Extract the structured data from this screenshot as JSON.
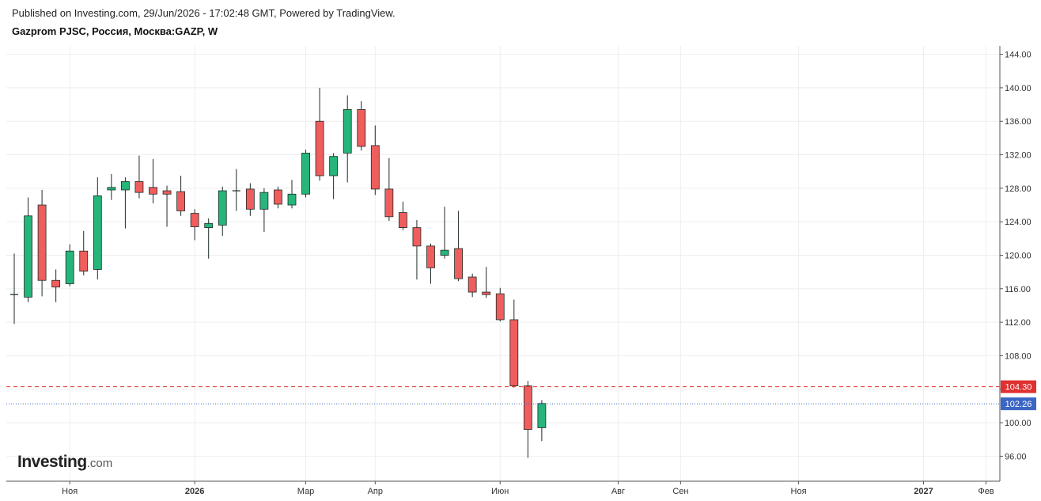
{
  "header": {
    "published": "Published on Investing.com, 29/Jun/2026 - 17:02:48 GMT, Powered by TradingView.",
    "symbol": "Gazprom PJSC, Россия, Москва:GAZP, W"
  },
  "logo": {
    "brand": "Investing",
    "domain": ".com"
  },
  "colors": {
    "up": "#26b57a",
    "down": "#f05d5d",
    "wick": "#1d2a26",
    "grid": "#eeeeee",
    "axis": "#555555",
    "alert_line": "#e03030",
    "price_line": "#3b66c4"
  },
  "chart_data": {
    "type": "candlestick",
    "timeframe": "W",
    "ylim": [
      93,
      145
    ],
    "y_ticks": [
      96,
      100,
      104,
      108,
      112,
      116,
      120,
      124,
      128,
      132,
      136,
      140,
      144
    ],
    "y_tick_labels": [
      "96.00",
      "100.00",
      "104.00",
      "108.00",
      "112.00",
      "116.00",
      "120.00",
      "124.00",
      "128.00",
      "132.00",
      "136.00",
      "140.00",
      "144.00"
    ],
    "x_labels": [
      {
        "label": "Ноя",
        "week": 4,
        "bold": false
      },
      {
        "label": "2026",
        "week": 13,
        "bold": true
      },
      {
        "label": "Мар",
        "week": 21,
        "bold": false
      },
      {
        "label": "Апр",
        "week": 26,
        "bold": false
      },
      {
        "label": "Июн",
        "week": 35,
        "bold": false
      },
      {
        "label": "Авг",
        "week": 43.5,
        "bold": false
      },
      {
        "label": "Сен",
        "week": 48,
        "bold": false
      },
      {
        "label": "Ноя",
        "week": 56.5,
        "bold": false
      },
      {
        "label": "2027",
        "week": 65.5,
        "bold": true
      },
      {
        "label": "Фев",
        "week": 70,
        "bold": false
      }
    ],
    "candles": [
      {
        "o": 115.3,
        "h": 120.2,
        "l": 111.8,
        "c": 115.3
      },
      {
        "o": 115.0,
        "h": 126.9,
        "l": 114.4,
        "c": 124.7
      },
      {
        "o": 126.0,
        "h": 127.8,
        "l": 115.1,
        "c": 117.0
      },
      {
        "o": 117.0,
        "h": 118.3,
        "l": 114.4,
        "c": 116.2
      },
      {
        "o": 116.6,
        "h": 121.3,
        "l": 116.3,
        "c": 120.5
      },
      {
        "o": 120.5,
        "h": 122.9,
        "l": 117.6,
        "c": 118.1
      },
      {
        "o": 118.3,
        "h": 129.3,
        "l": 117.1,
        "c": 127.1
      },
      {
        "o": 127.8,
        "h": 129.7,
        "l": 126.6,
        "c": 128.1
      },
      {
        "o": 127.8,
        "h": 129.3,
        "l": 123.2,
        "c": 128.8
      },
      {
        "o": 128.8,
        "h": 131.9,
        "l": 126.8,
        "c": 127.5
      },
      {
        "o": 128.1,
        "h": 131.5,
        "l": 126.2,
        "c": 127.3
      },
      {
        "o": 127.7,
        "h": 128.3,
        "l": 123.4,
        "c": 127.3
      },
      {
        "o": 127.6,
        "h": 129.5,
        "l": 124.7,
        "c": 125.3
      },
      {
        "o": 125.0,
        "h": 125.5,
        "l": 121.8,
        "c": 123.4
      },
      {
        "o": 123.3,
        "h": 124.4,
        "l": 119.6,
        "c": 123.8
      },
      {
        "o": 123.6,
        "h": 128.2,
        "l": 122.3,
        "c": 127.7
      },
      {
        "o": 127.6,
        "h": 130.3,
        "l": 125.3,
        "c": 127.7
      },
      {
        "o": 127.9,
        "h": 128.6,
        "l": 124.7,
        "c": 125.5
      },
      {
        "o": 125.5,
        "h": 128.0,
        "l": 122.8,
        "c": 127.5
      },
      {
        "o": 127.8,
        "h": 128.2,
        "l": 125.6,
        "c": 126.1
      },
      {
        "o": 126.0,
        "h": 129.0,
        "l": 125.6,
        "c": 127.3
      },
      {
        "o": 127.3,
        "h": 132.6,
        "l": 126.9,
        "c": 132.2
      },
      {
        "o": 136.0,
        "h": 140.0,
        "l": 128.9,
        "c": 129.5
      },
      {
        "o": 129.5,
        "h": 132.2,
        "l": 126.7,
        "c": 131.8
      },
      {
        "o": 132.2,
        "h": 139.1,
        "l": 128.7,
        "c": 137.4
      },
      {
        "o": 137.4,
        "h": 138.4,
        "l": 132.5,
        "c": 133.0
      },
      {
        "o": 133.1,
        "h": 135.5,
        "l": 127.2,
        "c": 127.9
      },
      {
        "o": 127.9,
        "h": 131.6,
        "l": 124.1,
        "c": 124.6
      },
      {
        "o": 125.1,
        "h": 126.4,
        "l": 123.0,
        "c": 123.3
      },
      {
        "o": 123.3,
        "h": 124.2,
        "l": 117.1,
        "c": 121.1
      },
      {
        "o": 121.1,
        "h": 121.4,
        "l": 116.6,
        "c": 118.5
      },
      {
        "o": 120.0,
        "h": 125.8,
        "l": 119.6,
        "c": 120.6
      },
      {
        "o": 120.8,
        "h": 125.3,
        "l": 116.9,
        "c": 117.2
      },
      {
        "o": 117.4,
        "h": 117.8,
        "l": 115.0,
        "c": 115.6
      },
      {
        "o": 115.6,
        "h": 118.6,
        "l": 114.9,
        "c": 115.3
      },
      {
        "o": 115.4,
        "h": 116.1,
        "l": 112.1,
        "c": 112.3
      },
      {
        "o": 112.3,
        "h": 114.7,
        "l": 104.2,
        "c": 104.4
      },
      {
        "o": 104.4,
        "h": 105.0,
        "l": 95.8,
        "c": 99.2
      },
      {
        "o": 99.4,
        "h": 102.7,
        "l": 97.8,
        "c": 102.3
      }
    ],
    "hlines": [
      {
        "value": 104.3,
        "label": "104.30",
        "style": "dashed",
        "color": "#e03030"
      },
      {
        "value": 102.26,
        "label": "102.26",
        "style": "dotted",
        "color": "#3b66c4"
      }
    ]
  }
}
